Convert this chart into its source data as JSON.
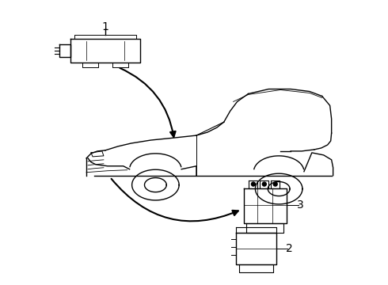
{
  "background_color": "#ffffff",
  "line_color": "#000000",
  "figsize": [
    4.9,
    3.6
  ],
  "dpi": 100,
  "label_1": "1",
  "label_2": "2",
  "label_3": "3",
  "label_fontsize": 10,
  "default_lw": 1.0
}
